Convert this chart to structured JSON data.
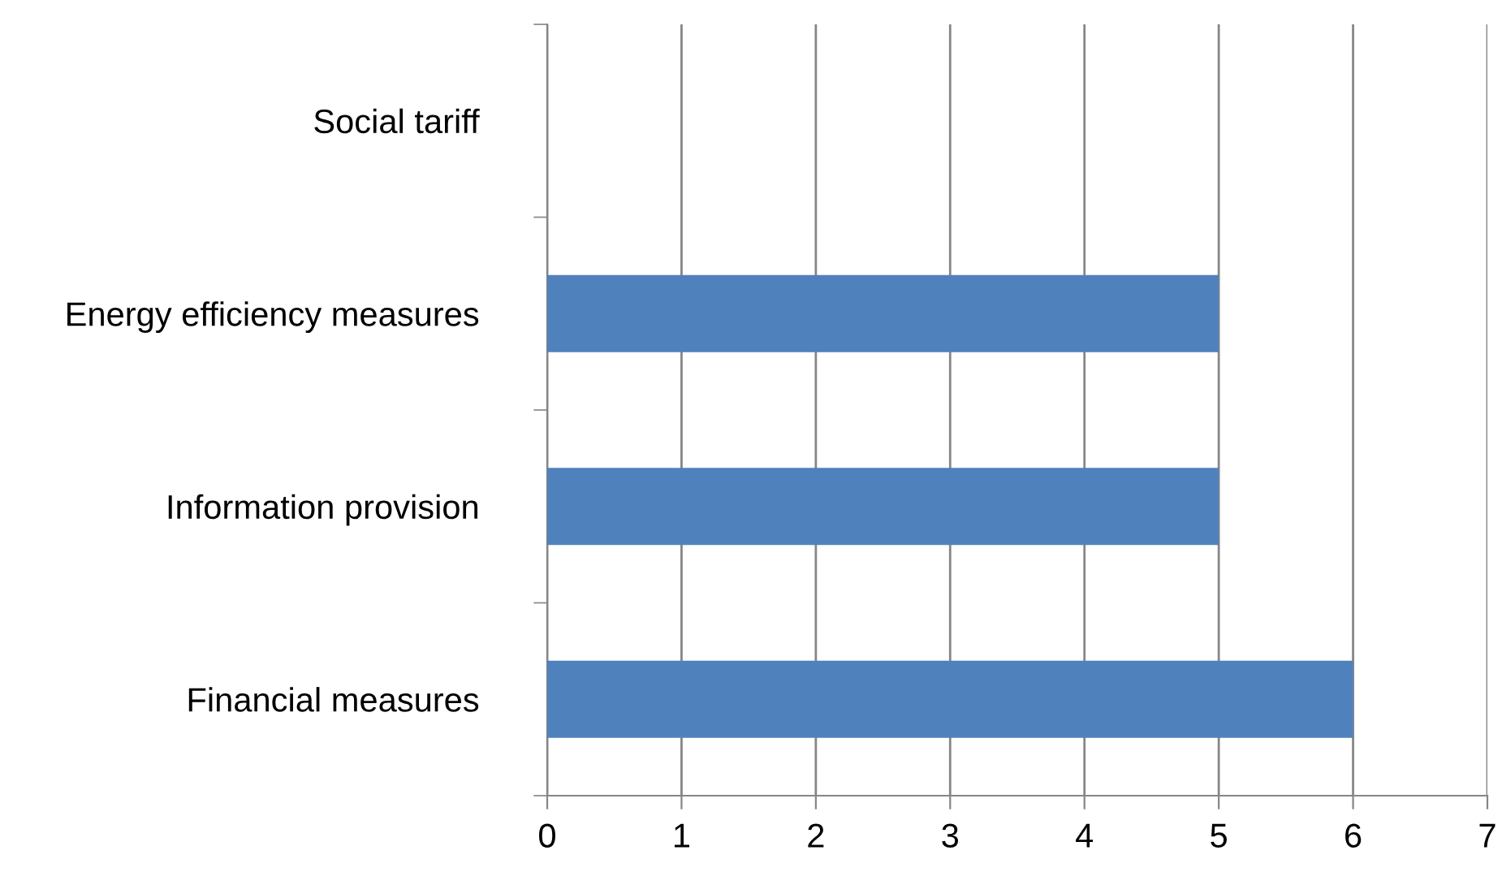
{
  "chart_data": {
    "type": "bar",
    "orientation": "horizontal",
    "categories": [
      "Social tariff",
      "Energy efficiency measures",
      "Information provision",
      "Financial measures"
    ],
    "values": [
      0,
      5,
      5,
      6
    ],
    "color": "#4f81bd",
    "xlim": [
      0,
      7
    ],
    "xticks": [
      0,
      1,
      2,
      3,
      4,
      5,
      6,
      7
    ],
    "grid": "x",
    "legend": false
  }
}
